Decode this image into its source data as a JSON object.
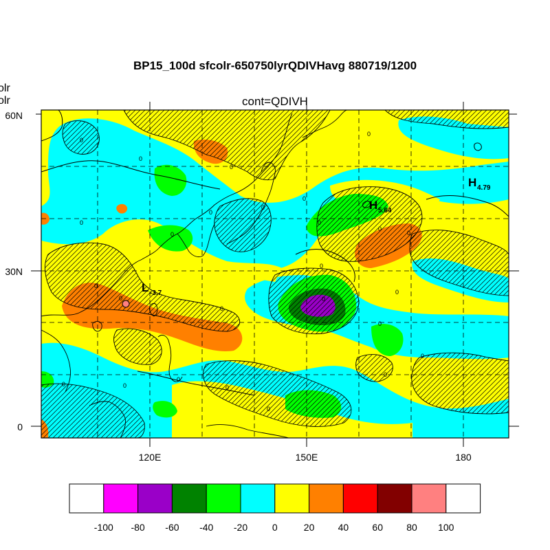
{
  "title": "BP15_100d sfcolr-650750lyrQDIVHavg  880719/1200",
  "subtitle": "cont=QDIVH",
  "left_cut_labels": [
    "olr",
    "olr"
  ],
  "map": {
    "lat_labels": [
      "60N",
      "30N",
      "0"
    ],
    "lon_labels": [
      "120E",
      "150E",
      "180"
    ],
    "highs_lows": [
      {
        "symbol": "H",
        "value": "4.79"
      },
      {
        "symbol": "H",
        "value": "5.64"
      },
      {
        "symbol": "L",
        "value": "-3.7"
      }
    ],
    "contour_label": "0"
  },
  "colorbar": {
    "colors": [
      "#ffffff",
      "#ff00ff",
      "#9a00c8",
      "#008200",
      "#00ff00",
      "#00ffff",
      "#ffff00",
      "#ff8000",
      "#ff0000",
      "#820000",
      "#ff8080",
      "#ffffff"
    ],
    "labels": [
      "-100",
      "-80",
      "-60",
      "-40",
      "-20",
      "0",
      "20",
      "40",
      "60",
      "80",
      "100"
    ]
  },
  "chart_data": {
    "type": "heatmap",
    "title": "BP15_100d sfcolr-650750lyrQDIVHavg  880719/1200",
    "subtitle": "cont=QDIVH",
    "x_ticks": [
      "120E",
      "150E",
      "180"
    ],
    "y_ticks": [
      "60N",
      "30N",
      "0"
    ],
    "scale_levels": [
      -100,
      -80,
      -60,
      -40,
      -20,
      0,
      20,
      40,
      60,
      80,
      100
    ]
  }
}
